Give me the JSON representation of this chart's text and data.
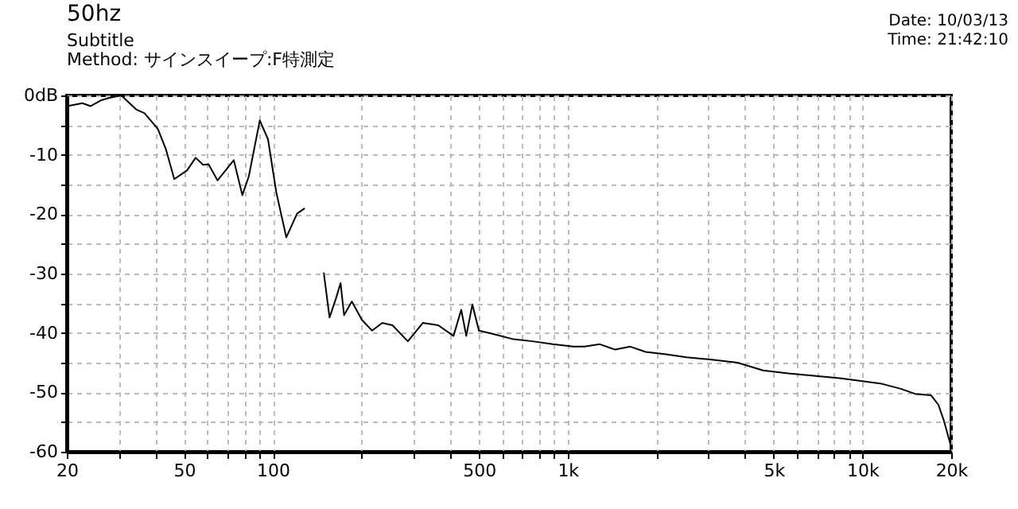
{
  "chart_data": {
    "type": "line",
    "title": "50hz",
    "subtitle": "Subtitle",
    "annotations": [
      "Method: サインスイープ:F特測定",
      "Date: 10/03/13",
      "Time: 21:42:10"
    ],
    "x": [
      20,
      22.6,
      24.1,
      26.2,
      27.9,
      30.6,
      34.5,
      36.7,
      40.7,
      43.4,
      46.3,
      51.2,
      54.7,
      58.0,
      60.5,
      64.9,
      73.7,
      78.8,
      82.9,
      90.3,
      96.3,
      102.7,
      111.1,
      120.8,
      128.2,
      140,
      148.8,
      155.7,
      163.4,
      169.7,
      174.4,
      185.3,
      200.5,
      217,
      235,
      254.6,
      287,
      323,
      364,
      410,
      435.5,
      453,
      475,
      500,
      553,
      648,
      760,
      891,
      1045,
      1140,
      1285,
      1449,
      1632,
      1840,
      2160,
      2530,
      3090,
      3770,
      4600,
      5610,
      6850,
      8360,
      10000,
      11500,
      13500,
      15200,
      17100,
      18100,
      18900,
      20000
    ],
    "series": [
      {
        "color": "#000000",
        "values": [
          -1.8,
          -1.3,
          -1.8,
          -0.8,
          -0.4,
          0,
          -2.4,
          -3.0,
          -5.6,
          -9.1,
          -14.1,
          -12.6,
          -10.5,
          -11.7,
          -11.6,
          -14.3,
          -10.9,
          -16.8,
          -13.6,
          -4.2,
          -7.4,
          -16.3,
          -23.9,
          -19.9,
          -19.0,
          null,
          -29.8,
          -37.4,
          -34.3,
          -31.6,
          -37.0,
          -34.7,
          -37.8,
          -39.6,
          -38.3,
          -38.7,
          -41.4,
          -38.3,
          -38.7,
          -40.5,
          -36.1,
          -40.5,
          -35.2,
          -39.6,
          -40.1,
          -41.0,
          -41.4,
          -41.9,
          -42.3,
          -42.3,
          -41.9,
          -42.8,
          -42.3,
          -43.2,
          -43.6,
          -44.1,
          -44.5,
          -45.0,
          -46.3,
          -46.8,
          -47.2,
          -47.6,
          -48.1,
          -48.5,
          -49.4,
          -50.3,
          -50.5,
          -52.1,
          -54.8,
          -59.2
        ]
      }
    ],
    "log": "x",
    "xlim": [
      20,
      20000
    ],
    "xticks": [
      20,
      {
        "value": 30,
        "label": null
      },
      {
        "value": 40,
        "label": null
      },
      50,
      {
        "value": 60,
        "label": null
      },
      {
        "value": 70,
        "label": null
      },
      {
        "value": 80,
        "label": null
      },
      {
        "value": 90,
        "label": null
      },
      100,
      {
        "value": 200,
        "label": null
      },
      {
        "value": 300,
        "label": null
      },
      {
        "value": 400,
        "label": null
      },
      500,
      {
        "value": 600,
        "label": null
      },
      {
        "value": 700,
        "label": null
      },
      {
        "value": 800,
        "label": null
      },
      {
        "value": 900,
        "label": null
      },
      {
        "value": 1000,
        "label": "1k"
      },
      {
        "value": 2000,
        "label": null
      },
      {
        "value": 3000,
        "label": null
      },
      {
        "value": 4000,
        "label": null
      },
      {
        "value": 5000,
        "label": "5k"
      },
      {
        "value": 6000,
        "label": null
      },
      {
        "value": 7000,
        "label": null
      },
      {
        "value": 8000,
        "label": null
      },
      {
        "value": 9000,
        "label": null
      },
      {
        "value": 10000,
        "label": "10k"
      },
      {
        "value": 20000,
        "label": "20k"
      }
    ],
    "ylim": [
      -60,
      0
    ],
    "yticks": [
      {
        "value": 0,
        "label": "0dB"
      },
      {
        "value": -5,
        "label": null
      },
      -10,
      {
        "value": -15,
        "label": null
      },
      -20,
      {
        "value": -25,
        "label": null
      },
      -30,
      {
        "value": -35,
        "label": null
      },
      -40,
      {
        "value": -45,
        "label": null
      },
      -50,
      {
        "value": -55,
        "label": null
      },
      -60
    ],
    "grid": true,
    "marker": "none",
    "line_style": "solid"
  }
}
